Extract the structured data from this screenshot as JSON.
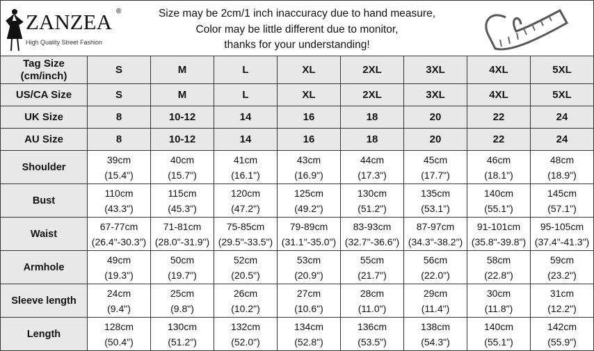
{
  "brand": {
    "name": "ZANZEA",
    "registered": "®",
    "tagline": "High Quality Street Fashion"
  },
  "notes": [
    "Size may be 2cm/1 inch inaccuracy due to hand measure,",
    "Color may be little different due to monitor,",
    "thanks for your understanding!"
  ],
  "tape_icon": "measuring-tape-icon",
  "table": {
    "header_rows": [
      {
        "label": [
          "Tag Size",
          "(cm/inch)"
        ],
        "values": [
          "S",
          "M",
          "L",
          "XL",
          "2XL",
          "3XL",
          "4XL",
          "5XL"
        ]
      },
      {
        "label": [
          "US/CA Size"
        ],
        "values": [
          "S",
          "M",
          "L",
          "XL",
          "2XL",
          "3XL",
          "4XL",
          "5XL"
        ]
      },
      {
        "label": [
          "UK Size"
        ],
        "values": [
          "8",
          "10-12",
          "14",
          "16",
          "18",
          "20",
          "22",
          "24"
        ]
      },
      {
        "label": [
          "AU Size"
        ],
        "values": [
          "8",
          "10-12",
          "14",
          "16",
          "18",
          "20",
          "22",
          "24"
        ]
      }
    ],
    "measure_rows": [
      {
        "label": "Shoulder",
        "cm": [
          "39cm",
          "40cm",
          "41cm",
          "43cm",
          "44cm",
          "45cm",
          "46cm",
          "48cm"
        ],
        "inch": [
          "(15.4\")",
          "(15.7\")",
          "(16.1\")",
          "(16.9\")",
          "(17.3\")",
          "(17.7\")",
          "(18.1\")",
          "(18.9\")"
        ]
      },
      {
        "label": "Bust",
        "cm": [
          "110cm",
          "115cm",
          "120cm",
          "125cm",
          "130cm",
          "135cm",
          "140cm",
          "145cm"
        ],
        "inch": [
          "(43.3\")",
          "(45.3\")",
          "(47.2\")",
          "(49.2\")",
          "(51.2\")",
          "(53.1\")",
          "(55.1\")",
          "(57.1\")"
        ]
      },
      {
        "label": "Waist",
        "cm": [
          "67-77cm",
          "71-81cm",
          "75-85cm",
          "79-89cm",
          "83-93cm",
          "87-97cm",
          "91-101cm",
          "95-105cm"
        ],
        "inch": [
          "(26.4\"-30.3\")",
          "(28.0\"-31.9\")",
          "(29.5\"-33.5\")",
          "(31.1\"-35.0\")",
          "(32.7\"-36.6\")",
          "(34.3\"-38.2\")",
          "(35.8\"-39.8\")",
          "(37.4\"-41.3\")"
        ]
      },
      {
        "label": "Armhole",
        "cm": [
          "49cm",
          "50cm",
          "52cm",
          "53cm",
          "55cm",
          "56cm",
          "58cm",
          "59cm"
        ],
        "inch": [
          "(19.3\")",
          "(19.7\")",
          "(20.5\")",
          "(20.9\")",
          "(21.7\")",
          "(22.0\")",
          "(22.8\")",
          "(23.2\")"
        ]
      },
      {
        "label": "Sleeve length",
        "cm": [
          "24cm",
          "25cm",
          "26cm",
          "27cm",
          "28cm",
          "29cm",
          "30cm",
          "31cm"
        ],
        "inch": [
          "(9.4\")",
          "(9.8\")",
          "(10.2\")",
          "(10.6\")",
          "(11.0\")",
          "(11.4\")",
          "(11.8\")",
          "(12.2\")"
        ]
      },
      {
        "label": "Length",
        "cm": [
          "128cm",
          "130cm",
          "132cm",
          "134cm",
          "136cm",
          "138cm",
          "140cm",
          "142cm"
        ],
        "inch": [
          "(50.4\")",
          "(51.2\")",
          "(52.0\")",
          "(52.8\")",
          "(53.5\")",
          "(54.3\")",
          "(55.1\")",
          "(55.9\")"
        ]
      }
    ]
  }
}
